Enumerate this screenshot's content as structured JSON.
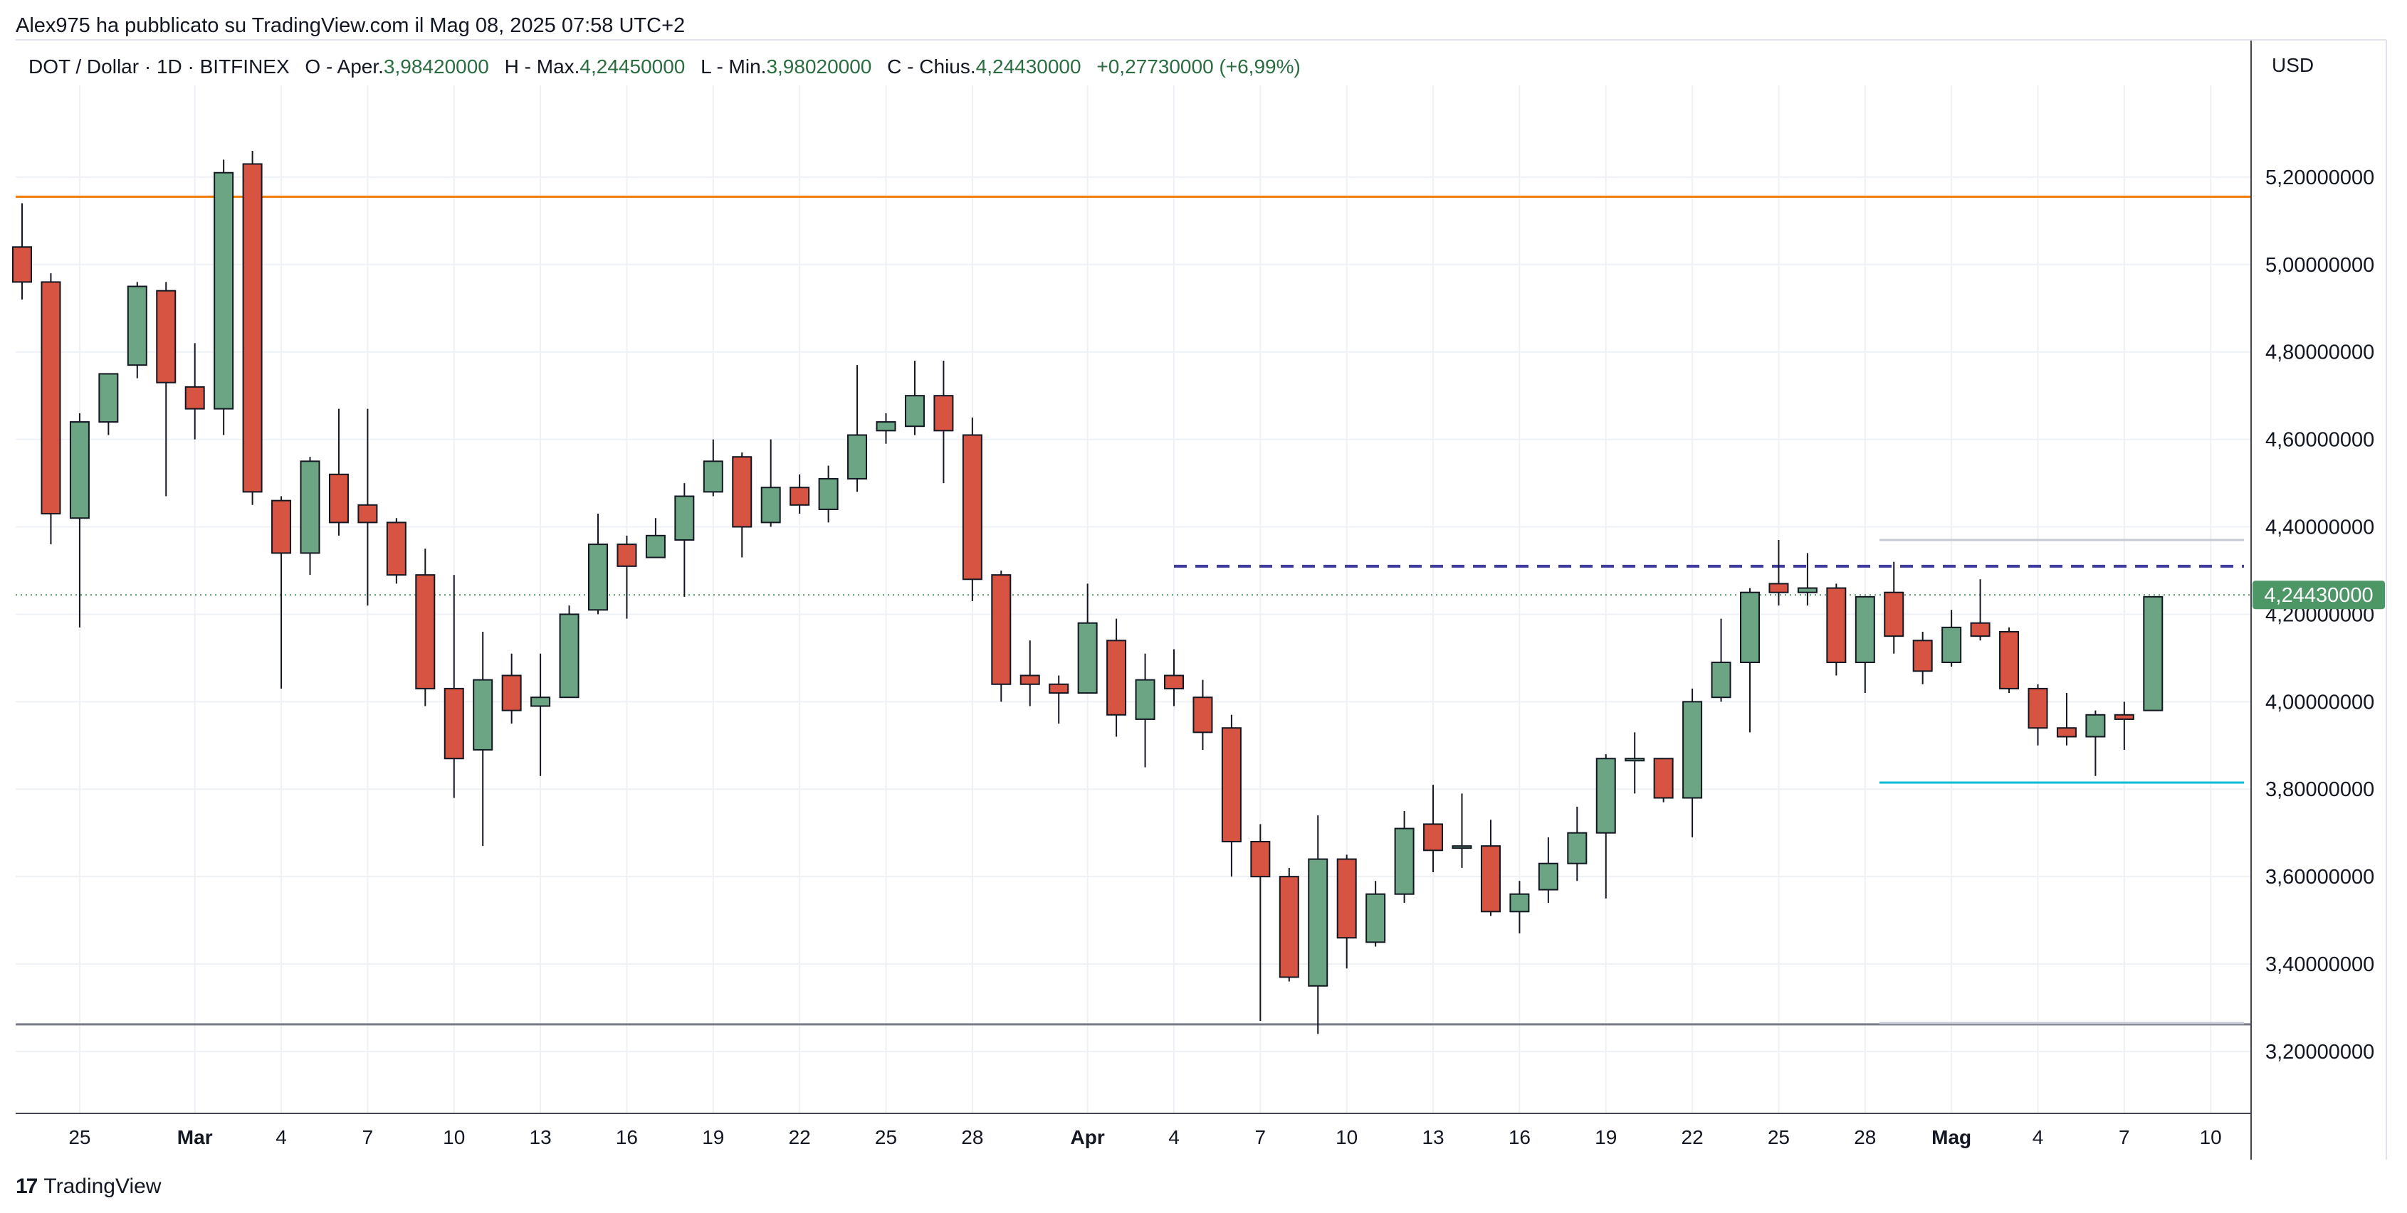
{
  "header": {
    "text": "Alex975 ha pubblicato su TradingView.com il Mag 08, 2025 07:58 UTC+2"
  },
  "legend": {
    "symbol": "DOT / Dollar · 1D · BITFINEX",
    "open_label": "O - Aper.",
    "open_value": "3,98420000",
    "high_label": "H - Max.",
    "high_value": "4,24450000",
    "low_label": "L - Min.",
    "low_value": "3,98020000",
    "close_label": "C - Chius.",
    "close_value": "4,24430000",
    "change": "+0,27730000 (+6,99%)"
  },
  "price_axis": {
    "currency": "USD",
    "tick_labels": [
      "5,20000000",
      "5,00000000",
      "4,80000000",
      "4,60000000",
      "4,40000000",
      "4,20000000",
      "4,00000000",
      "3,80000000",
      "3,60000000",
      "3,40000000",
      "3,20000000"
    ],
    "last_price_label": "4,24430000"
  },
  "time_axis": {
    "labels": [
      "25",
      "Mar",
      "4",
      "7",
      "10",
      "13",
      "16",
      "19",
      "22",
      "25",
      "28",
      "Apr",
      "4",
      "7",
      "10",
      "13",
      "16",
      "19",
      "22",
      "25",
      "28",
      "Mag",
      "4",
      "7",
      "10"
    ]
  },
  "footer": {
    "logo": "17",
    "brand": "TradingView"
  },
  "colors": {
    "up": "#6ba583",
    "down": "#d75442",
    "wick": "#131722",
    "resistance": "#f57c00",
    "support_low": "#787b86",
    "dashed_level": "#3f3ba0",
    "cyan_level": "#00bcd4",
    "last_price_bg": "#4d9767",
    "grid": "#eef1f5"
  },
  "chart_data": {
    "type": "candlestick",
    "symbol": "DOT / Dollar",
    "timeframe": "1D",
    "exchange": "BITFINEX",
    "ylim": [
      3.06,
      5.4
    ],
    "y_ticks": [
      3.2,
      3.4,
      3.6,
      3.8,
      4.0,
      4.2,
      4.4,
      4.6,
      4.8,
      5.0,
      5.2
    ],
    "x_ticks": [
      {
        "index": 2,
        "label": "25"
      },
      {
        "index": 6,
        "label": "Mar"
      },
      {
        "index": 9,
        "label": "4"
      },
      {
        "index": 12,
        "label": "7"
      },
      {
        "index": 15,
        "label": "10"
      },
      {
        "index": 18,
        "label": "13"
      },
      {
        "index": 21,
        "label": "16"
      },
      {
        "index": 24,
        "label": "19"
      },
      {
        "index": 27,
        "label": "22"
      },
      {
        "index": 30,
        "label": "25"
      },
      {
        "index": 33,
        "label": "28"
      },
      {
        "index": 37,
        "label": "Apr"
      },
      {
        "index": 40,
        "label": "4"
      },
      {
        "index": 43,
        "label": "7"
      },
      {
        "index": 46,
        "label": "10"
      },
      {
        "index": 49,
        "label": "13"
      },
      {
        "index": 52,
        "label": "16"
      },
      {
        "index": 55,
        "label": "19"
      },
      {
        "index": 58,
        "label": "22"
      },
      {
        "index": 61,
        "label": "25"
      },
      {
        "index": 64,
        "label": "28"
      },
      {
        "index": 67,
        "label": "Mag"
      },
      {
        "index": 70,
        "label": "4"
      },
      {
        "index": 73,
        "label": "7"
      },
      {
        "index": 76,
        "label": "10"
      }
    ],
    "candles": [
      [
        5.04,
        5.14,
        4.92,
        4.96
      ],
      [
        4.96,
        4.98,
        4.36,
        4.43
      ],
      [
        4.42,
        4.66,
        4.17,
        4.64
      ],
      [
        4.64,
        4.75,
        4.61,
        4.75
      ],
      [
        4.77,
        4.96,
        4.74,
        4.95
      ],
      [
        4.94,
        4.96,
        4.47,
        4.73
      ],
      [
        4.72,
        4.82,
        4.6,
        4.67
      ],
      [
        4.67,
        5.24,
        4.61,
        5.21
      ],
      [
        5.23,
        5.26,
        4.45,
        4.48
      ],
      [
        4.46,
        4.47,
        4.03,
        4.34
      ],
      [
        4.34,
        4.56,
        4.29,
        4.55
      ],
      [
        4.52,
        4.67,
        4.38,
        4.41
      ],
      [
        4.45,
        4.67,
        4.22,
        4.41
      ],
      [
        4.41,
        4.42,
        4.27,
        4.29
      ],
      [
        4.29,
        4.35,
        3.99,
        4.03
      ],
      [
        4.03,
        4.29,
        3.78,
        3.87
      ],
      [
        3.89,
        4.16,
        3.67,
        4.05
      ],
      [
        4.06,
        4.11,
        3.95,
        3.98
      ],
      [
        3.99,
        4.11,
        3.83,
        4.01
      ],
      [
        4.01,
        4.22,
        4.01,
        4.2
      ],
      [
        4.21,
        4.43,
        4.2,
        4.36
      ],
      [
        4.36,
        4.38,
        4.19,
        4.31
      ],
      [
        4.33,
        4.42,
        4.33,
        4.38
      ],
      [
        4.37,
        4.5,
        4.24,
        4.47
      ],
      [
        4.48,
        4.6,
        4.47,
        4.55
      ],
      [
        4.56,
        4.57,
        4.33,
        4.4
      ],
      [
        4.41,
        4.6,
        4.4,
        4.49
      ],
      [
        4.49,
        4.52,
        4.43,
        4.45
      ],
      [
        4.44,
        4.54,
        4.41,
        4.51
      ],
      [
        4.51,
        4.77,
        4.48,
        4.61
      ],
      [
        4.62,
        4.66,
        4.59,
        4.64
      ],
      [
        4.63,
        4.78,
        4.61,
        4.7
      ],
      [
        4.7,
        4.78,
        4.5,
        4.62
      ],
      [
        4.61,
        4.65,
        4.23,
        4.28
      ],
      [
        4.29,
        4.3,
        4.0,
        4.04
      ],
      [
        4.06,
        4.14,
        3.99,
        4.04
      ],
      [
        4.04,
        4.06,
        3.95,
        4.02
      ],
      [
        4.02,
        4.27,
        4.02,
        4.18
      ],
      [
        4.14,
        4.19,
        3.92,
        3.97
      ],
      [
        3.96,
        4.11,
        3.85,
        4.05
      ],
      [
        4.06,
        4.12,
        3.99,
        4.03
      ],
      [
        4.01,
        4.05,
        3.89,
        3.93
      ],
      [
        3.94,
        3.97,
        3.6,
        3.68
      ],
      [
        3.68,
        3.72,
        3.27,
        3.6
      ],
      [
        3.6,
        3.62,
        3.36,
        3.37
      ],
      [
        3.35,
        3.74,
        3.24,
        3.64
      ],
      [
        3.64,
        3.65,
        3.39,
        3.46
      ],
      [
        3.45,
        3.59,
        3.44,
        3.56
      ],
      [
        3.56,
        3.75,
        3.54,
        3.71
      ],
      [
        3.72,
        3.81,
        3.61,
        3.66
      ],
      [
        3.67,
        3.79,
        3.62,
        3.67
      ],
      [
        3.67,
        3.73,
        3.51,
        3.52
      ],
      [
        3.52,
        3.59,
        3.47,
        3.56
      ],
      [
        3.57,
        3.69,
        3.54,
        3.63
      ],
      [
        3.63,
        3.76,
        3.59,
        3.7
      ],
      [
        3.7,
        3.88,
        3.55,
        3.87
      ],
      [
        3.87,
        3.93,
        3.79,
        3.87
      ],
      [
        3.87,
        3.87,
        3.77,
        3.78
      ],
      [
        3.78,
        4.03,
        3.69,
        4.0
      ],
      [
        4.01,
        4.19,
        4.0,
        4.09
      ],
      [
        4.09,
        4.26,
        3.93,
        4.25
      ],
      [
        4.27,
        4.37,
        4.22,
        4.25
      ],
      [
        4.25,
        4.34,
        4.22,
        4.26
      ],
      [
        4.26,
        4.27,
        4.06,
        4.09
      ],
      [
        4.09,
        4.24,
        4.02,
        4.24
      ],
      [
        4.25,
        4.32,
        4.11,
        4.15
      ],
      [
        4.14,
        4.16,
        4.04,
        4.07
      ],
      [
        4.09,
        4.21,
        4.08,
        4.17
      ],
      [
        4.18,
        4.28,
        4.14,
        4.15
      ],
      [
        4.16,
        4.17,
        4.02,
        4.03
      ],
      [
        4.03,
        4.04,
        3.9,
        3.94
      ],
      [
        3.94,
        4.02,
        3.9,
        3.92
      ],
      [
        3.92,
        3.98,
        3.83,
        3.97
      ],
      [
        3.97,
        4.0,
        3.89,
        3.96
      ],
      [
        3.98,
        4.24,
        3.98,
        4.24
      ]
    ],
    "horizontal_lines": [
      {
        "price": 5.155,
        "style": "solid",
        "color": "#f57c00",
        "from_index": null
      },
      {
        "price": 3.262,
        "style": "solid",
        "color": "#787b86",
        "from_index": null
      },
      {
        "price": 4.31,
        "style": "dashed",
        "color": "#3f3ba0",
        "from_index": 40
      },
      {
        "price": 4.37,
        "style": "solid",
        "color": "#c7c9d4",
        "from_index": 64.5
      },
      {
        "price": 3.815,
        "style": "solid",
        "color": "#00bcd4",
        "from_index": 64.5
      },
      {
        "price": 3.265,
        "style": "solid",
        "color": "#c7c9d4",
        "from_index": 64.5
      }
    ],
    "last_price": 4.2443
  }
}
